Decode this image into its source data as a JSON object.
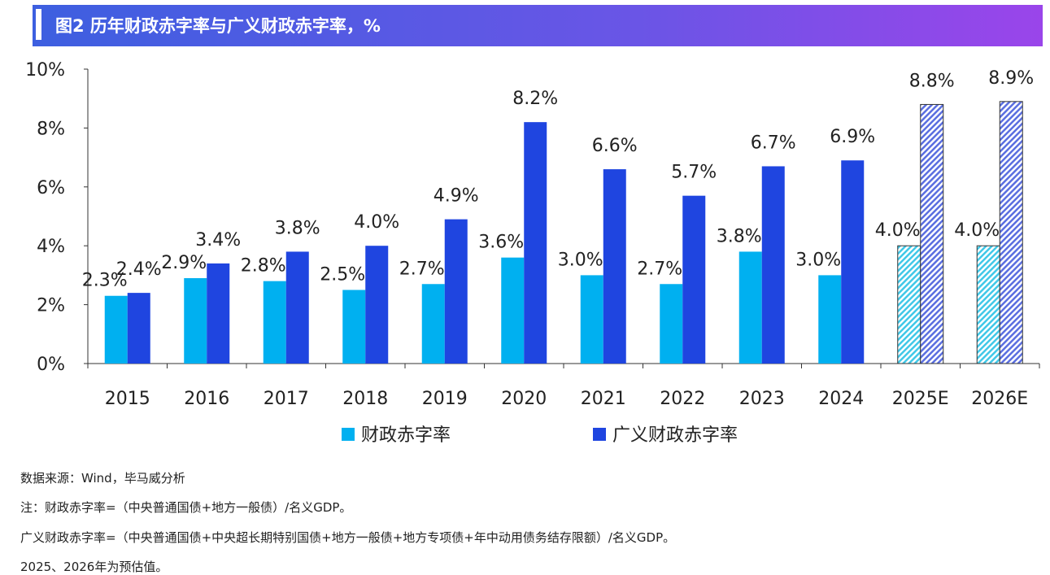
{
  "header": {
    "title": "图2 历年财政赤字率与广义财政赤字率，%"
  },
  "chart_data": {
    "type": "bar",
    "categories": [
      "2015",
      "2016",
      "2017",
      "2018",
      "2019",
      "2020",
      "2021",
      "2022",
      "2023",
      "2024",
      "2025E",
      "2026E"
    ],
    "series": [
      {
        "name": "财政赤字率",
        "color": "#00b0f0",
        "values": [
          2.3,
          2.9,
          2.8,
          2.5,
          2.7,
          3.6,
          3.0,
          2.7,
          3.8,
          3.0,
          4.0,
          4.0
        ],
        "labels": [
          "2.3%",
          "2.9%",
          "2.8%",
          "2.5%",
          "2.7%",
          "3.6%",
          "3.0%",
          "2.7%",
          "3.8%",
          "3.0%",
          "4.0%",
          "4.0%"
        ]
      },
      {
        "name": "广义财政赤字率",
        "color": "#1f45e0",
        "values": [
          2.4,
          3.4,
          3.8,
          4.0,
          4.9,
          8.2,
          6.6,
          5.7,
          6.7,
          6.9,
          8.8,
          8.9
        ],
        "labels": [
          "2.4%",
          "3.4%",
          "3.8%",
          "4.0%",
          "4.9%",
          "8.2%",
          "6.6%",
          "5.7%",
          "6.7%",
          "6.9%",
          "8.8%",
          "8.9%"
        ]
      }
    ],
    "estimated_categories": [
      "2025E",
      "2026E"
    ],
    "ylim": [
      0,
      10
    ],
    "yticks": [
      "0%",
      "2%",
      "4%",
      "6%",
      "8%",
      "10%"
    ],
    "grid": false,
    "legend": "bottom"
  },
  "notes": [
    "数据来源：Wind，毕马威分析",
    "注：财政赤字率=（中央普通国债+地方一般债）/名义GDP。",
    "广义财政赤字率=（中央普通国债+中央超长期特别国债+地方一般债+地方专项债+年中动用债务结存限额）/名义GDP。",
    "2025、2026年为预估值。"
  ]
}
